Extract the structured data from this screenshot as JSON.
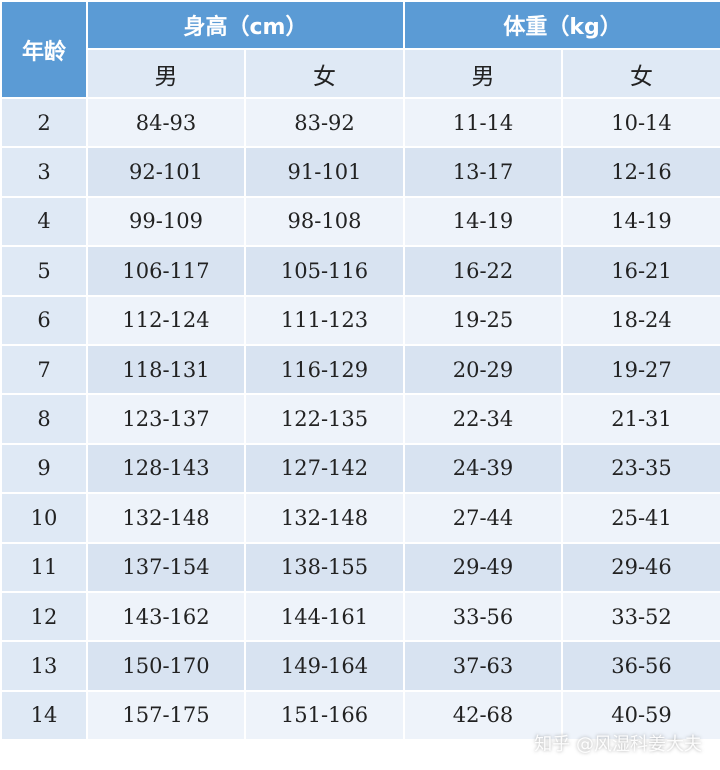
{
  "table": {
    "age_header": "年龄",
    "height_header": "身高（cm）",
    "weight_header": "体重（kg）",
    "male_label": "男",
    "female_label": "女",
    "rows": [
      {
        "age": "2",
        "height_male": "84-93",
        "height_female": "83-92",
        "weight_male": "11-14",
        "weight_female": "10-14"
      },
      {
        "age": "3",
        "height_male": "92-101",
        "height_female": "91-101",
        "weight_male": "13-17",
        "weight_female": "12-16"
      },
      {
        "age": "4",
        "height_male": "99-109",
        "height_female": "98-108",
        "weight_male": "14-19",
        "weight_female": "14-19"
      },
      {
        "age": "5",
        "height_male": "106-117",
        "height_female": "105-116",
        "weight_male": "16-22",
        "weight_female": "16-21"
      },
      {
        "age": "6",
        "height_male": "112-124",
        "height_female": "111-123",
        "weight_male": "19-25",
        "weight_female": "18-24"
      },
      {
        "age": "7",
        "height_male": "118-131",
        "height_female": "116-129",
        "weight_male": "20-29",
        "weight_female": "19-27"
      },
      {
        "age": "8",
        "height_male": "123-137",
        "height_female": "122-135",
        "weight_male": "22-34",
        "weight_female": "21-31"
      },
      {
        "age": "9",
        "height_male": "128-143",
        "height_female": "127-142",
        "weight_male": "24-39",
        "weight_female": "23-35"
      },
      {
        "age": "10",
        "height_male": "132-148",
        "height_female": "132-148",
        "weight_male": "27-44",
        "weight_female": "25-41"
      },
      {
        "age": "11",
        "height_male": "137-154",
        "height_female": "138-155",
        "weight_male": "29-49",
        "weight_female": "29-46"
      },
      {
        "age": "12",
        "height_male": "143-162",
        "height_female": "144-161",
        "weight_male": "33-56",
        "weight_female": "33-52"
      },
      {
        "age": "13",
        "height_male": "150-170",
        "height_female": "149-164",
        "weight_male": "37-63",
        "weight_female": "36-56"
      },
      {
        "age": "14",
        "height_male": "157-175",
        "height_female": "151-166",
        "weight_male": "42-68",
        "weight_female": "40-59"
      }
    ]
  },
  "watermark": "知乎 @风湿科姜大夫",
  "colors": {
    "header_blue": "#5b9bd5",
    "subheader_light": "#dfe9f5",
    "row_light": "#eef3fa",
    "row_dark": "#d8e3f1"
  }
}
